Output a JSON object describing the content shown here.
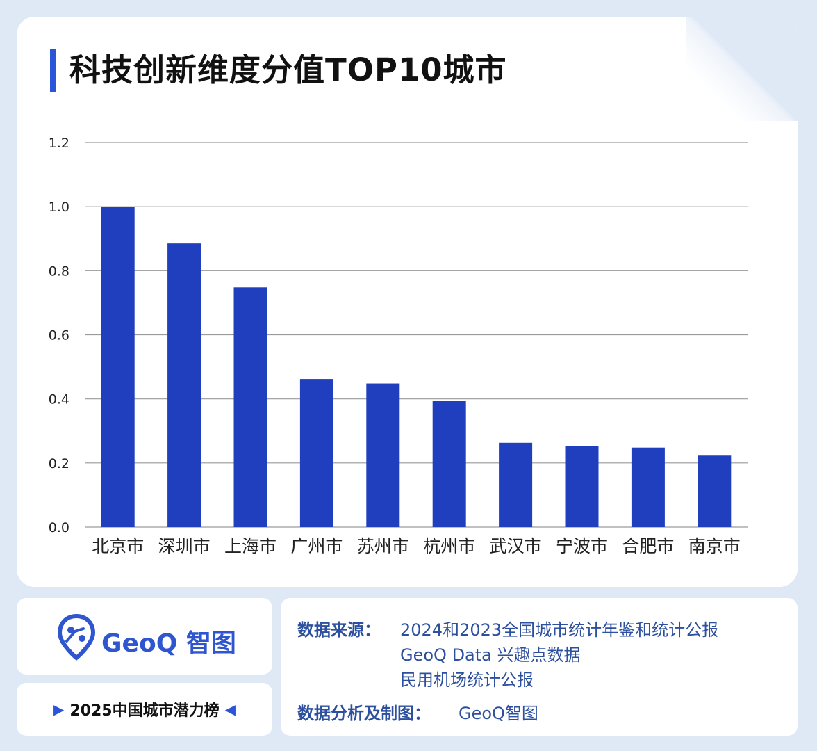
{
  "title": "科技创新维度分值TOP10城市",
  "chart_data": {
    "type": "bar",
    "title": "科技创新维度分值TOP10城市",
    "xlabel": "",
    "ylabel": "",
    "categories": [
      "北京市",
      "深圳市",
      "上海市",
      "广州市",
      "苏州市",
      "杭州市",
      "武汉市",
      "宁波市",
      "合肥市",
      "南京市"
    ],
    "values": [
      1.0,
      0.885,
      0.748,
      0.462,
      0.448,
      0.394,
      0.263,
      0.253,
      0.248,
      0.223
    ],
    "yticks": [
      "0.0",
      "0.2",
      "0.4",
      "0.6",
      "0.8",
      "1.0",
      "1.2"
    ],
    "ylim": [
      0,
      1.2
    ],
    "grid": true,
    "bar_color": "#1f3fbf"
  },
  "logo": {
    "name": "GeoQ 智图",
    "icon": "map-pin-icon"
  },
  "slogan": {
    "left_marker": "▶",
    "text": "2025中国城市潜力榜",
    "right_marker": "◀"
  },
  "source": {
    "label": "数据来源：",
    "lines": [
      "2024和2023全国城市统计年鉴和统计公报",
      "GeoQ Data 兴趣点数据",
      "民用机场统计公报"
    ]
  },
  "credit": {
    "label": "数据分析及制图：",
    "value": "GeoQ智图"
  },
  "colors": {
    "accent": "#2b55d8",
    "text_blue": "#2c4f9e",
    "background": "#dfe9f6"
  }
}
